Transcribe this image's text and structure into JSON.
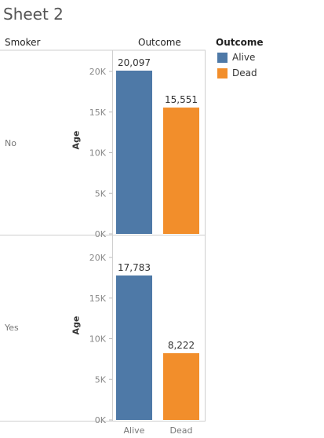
{
  "sheet_title": "Sheet 2",
  "row_header": "Smoker",
  "col_header": "Outcome",
  "legend": {
    "title": "Outcome",
    "items": [
      {
        "label": "Alive",
        "color": "#4e79a7"
      },
      {
        "label": "Dead",
        "color": "#f28e2b"
      }
    ]
  },
  "chart_data": [
    {
      "type": "bar",
      "row": "No",
      "categories": [
        "Alive",
        "Dead"
      ],
      "values": [
        20097,
        15551
      ],
      "data_labels": [
        "20,097",
        "15,551"
      ],
      "ylabel": "Age",
      "ylim": [
        0,
        22000
      ],
      "yticks": [
        0,
        5000,
        10000,
        15000,
        20000
      ],
      "ytick_labels": [
        "0K",
        "5K",
        "10K",
        "15K",
        "20K"
      ],
      "colors": [
        "#4e79a7",
        "#f28e2b"
      ],
      "grid": false
    },
    {
      "type": "bar",
      "row": "Yes",
      "categories": [
        "Alive",
        "Dead"
      ],
      "values": [
        17783,
        8222
      ],
      "data_labels": [
        "17,783",
        "8,222"
      ],
      "ylabel": "Age",
      "ylim": [
        0,
        22000
      ],
      "yticks": [
        0,
        5000,
        10000,
        15000,
        20000
      ],
      "ytick_labels": [
        "0K",
        "5K",
        "10K",
        "15K",
        "20K"
      ],
      "colors": [
        "#4e79a7",
        "#f28e2b"
      ],
      "grid": false
    }
  ],
  "x_categories": [
    "Alive",
    "Dead"
  ]
}
